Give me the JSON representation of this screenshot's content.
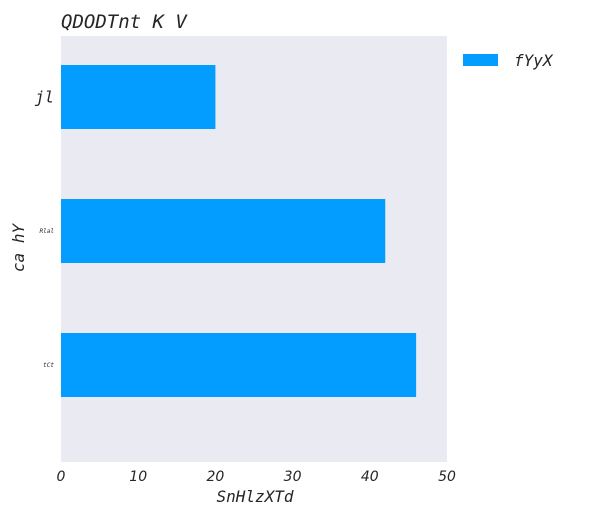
{
  "chart_data": {
    "type": "bar",
    "orientation": "horizontal",
    "title": "QDODTnt K V",
    "xlabel": "SnHlzXTd",
    "ylabel": "ca hY",
    "categories": [
      "jl",
      "Rlal",
      "tCt"
    ],
    "series": [
      {
        "name": "fYyX",
        "values": [
          20,
          42,
          46
        ],
        "color": "#039dff"
      }
    ],
    "xlim": [
      0,
      50
    ],
    "xticks": [
      0,
      10,
      20,
      30,
      40,
      50
    ],
    "grid": false,
    "background": "#eaeaf2",
    "legend": {
      "position": "top-right-outside"
    }
  }
}
